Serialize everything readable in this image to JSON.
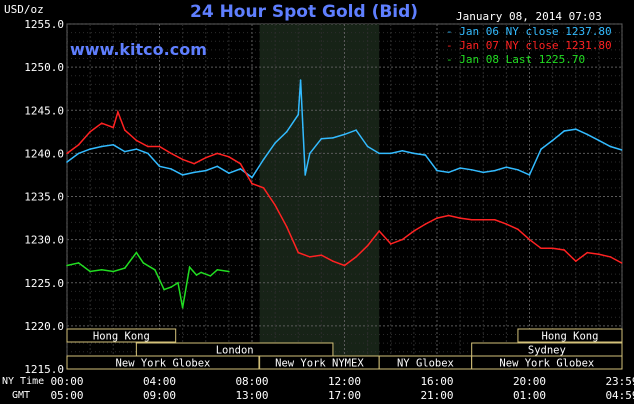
{
  "chart_data": {
    "type": "line",
    "title": "24 Hour Spot Gold (Bid)",
    "watermark": "www.kitco.com",
    "timestamp": "January 08, 2014 07:03",
    "y_axis_unit": "USD/oz",
    "ylim": [
      1215.0,
      1255.0
    ],
    "y_ticks": [
      "1255.0",
      "1250.0",
      "1245.0",
      "1240.0",
      "1235.0",
      "1230.0",
      "1225.0",
      "1220.0",
      "1215.0"
    ],
    "x_row_labels": [
      "NY Time",
      "GMT"
    ],
    "x_ticks_ny": [
      "00:00",
      "04:00",
      "08:00",
      "12:00",
      "16:00",
      "20:00",
      "23:59"
    ],
    "x_ticks_gmt": [
      "05:00",
      "09:00",
      "13:00",
      "17:00",
      "21:00",
      "01:00",
      "04:59"
    ],
    "x_range_hours": [
      0,
      24
    ],
    "shaded_session": {
      "label": "New York NYMEX",
      "start_hour": 8.33,
      "end_hour": 13.5
    },
    "legend": [
      {
        "label": "Jan 06 NY close 1237.80",
        "color": "#33bbff"
      },
      {
        "label": "Jan 07 NY close 1231.80",
        "color": "#ff2222"
      },
      {
        "label": "Jan 08 Last 1225.70",
        "color": "#22dd22"
      }
    ],
    "sessions": [
      {
        "label": "Hong Kong",
        "row": 0,
        "start_hour": 0.0,
        "end_hour": 4.7
      },
      {
        "label": "Hong Kong",
        "row": 0,
        "start_hour": 19.5,
        "end_hour": 24.0
      },
      {
        "label": "London",
        "row": 1,
        "start_hour": 3.0,
        "end_hour": 11.5
      },
      {
        "label": "Sydney",
        "row": 1,
        "start_hour": 17.5,
        "end_hour": 24.0
      },
      {
        "label": "New York Globex",
        "row": 2,
        "start_hour": 0.0,
        "end_hour": 8.3
      },
      {
        "label": "New York NYMEX",
        "row": 2,
        "start_hour": 8.33,
        "end_hour": 13.5
      },
      {
        "label": "NY Globex",
        "row": 2,
        "start_hour": 13.5,
        "end_hour": 17.5
      },
      {
        "label": "New York Globex",
        "row": 2,
        "start_hour": 17.5,
        "end_hour": 24.0
      }
    ],
    "series": [
      {
        "name": "Jan 06",
        "color": "#33bbff",
        "x": [
          0,
          0.5,
          1,
          1.5,
          2,
          2.5,
          3,
          3.5,
          4,
          4.5,
          5,
          5.5,
          6,
          6.5,
          7,
          7.5,
          8,
          8.5,
          9,
          9.5,
          10,
          10.1,
          10.2,
          10.3,
          10.5,
          11,
          11.5,
          12,
          12.5,
          13,
          13.5,
          14,
          14.5,
          15,
          15.5,
          16,
          16.5,
          17,
          17.5,
          18,
          18.5,
          19,
          19.5,
          20,
          20.5,
          21,
          21.5,
          22,
          22.5,
          23,
          23.5,
          23.98
        ],
        "values": [
          1239,
          1240,
          1240.5,
          1240.8,
          1241,
          1240.2,
          1240.5,
          1240,
          1238.5,
          1238.2,
          1237.5,
          1237.8,
          1238,
          1238.5,
          1237.7,
          1238.2,
          1237.2,
          1239.3,
          1241.2,
          1242.5,
          1244.5,
          1248.5,
          1243,
          1237.5,
          1240,
          1241.7,
          1241.8,
          1242.2,
          1242.7,
          1240.8,
          1240,
          1240,
          1240.3,
          1240,
          1239.8,
          1238,
          1237.8,
          1238.3,
          1238.1,
          1237.8,
          1238,
          1238.4,
          1238.1,
          1237.5,
          1240.5,
          1241.5,
          1242.6,
          1242.8,
          1242.2,
          1241.5,
          1240.8,
          1240.4
        ]
      },
      {
        "name": "Jan 07",
        "color": "#ff2222",
        "x": [
          0,
          0.5,
          1,
          1.5,
          2,
          2.2,
          2.5,
          3,
          3.5,
          4,
          4.5,
          5,
          5.5,
          6,
          6.5,
          7,
          7.5,
          8,
          8.5,
          9,
          9.5,
          10,
          10.5,
          11,
          11.5,
          12,
          12.5,
          13,
          13.5,
          14,
          14.5,
          15,
          15.5,
          16,
          16.5,
          17,
          17.5,
          18,
          18.5,
          19,
          19.5,
          20,
          20.5,
          21,
          21.5,
          22,
          22.5,
          23,
          23.5,
          23.98
        ],
        "values": [
          1240,
          1241,
          1242.5,
          1243.5,
          1243,
          1244.8,
          1242.7,
          1241.5,
          1240.8,
          1240.8,
          1240,
          1239.3,
          1238.8,
          1239.5,
          1240,
          1239.6,
          1238.8,
          1236.5,
          1236,
          1234,
          1231.5,
          1228.5,
          1228,
          1228.2,
          1227.5,
          1227,
          1228,
          1229.3,
          1231,
          1229.5,
          1230,
          1231,
          1231.8,
          1232.5,
          1232.8,
          1232.5,
          1232.3,
          1232.3,
          1232.3,
          1231.8,
          1231.2,
          1230,
          1229,
          1229,
          1228.8,
          1227.5,
          1228.5,
          1228.3,
          1228,
          1227.3
        ]
      },
      {
        "name": "Jan 08",
        "color": "#22dd22",
        "x": [
          0,
          0.5,
          1,
          1.5,
          2,
          2.5,
          3,
          3.3,
          3.8,
          4.2,
          4.5,
          4.8,
          5,
          5.3,
          5.6,
          5.8,
          6.2,
          6.5,
          7
        ],
        "values": [
          1227,
          1227.3,
          1226.3,
          1226.5,
          1226.3,
          1226.7,
          1228.5,
          1227.3,
          1226.5,
          1224.2,
          1224.5,
          1225,
          1222.1,
          1226.8,
          1225.9,
          1226.2,
          1225.8,
          1226.5,
          1226.3
        ]
      }
    ]
  }
}
